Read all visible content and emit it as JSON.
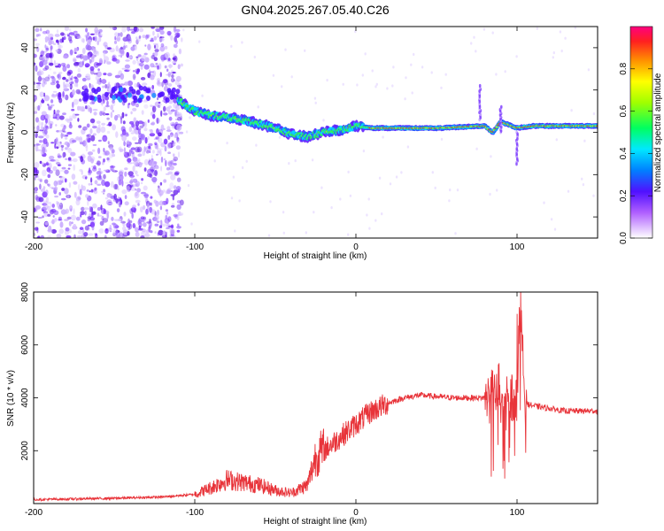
{
  "title": "GN04.2025.267.05.40.C26",
  "chart_data": [
    {
      "type": "heatmap",
      "xlabel": "Height of straight line (km)",
      "ylabel": "Frequency (Hz)",
      "xlim": [
        -200,
        150
      ],
      "ylim": [
        -50,
        50
      ],
      "xticks": [
        -200,
        -100,
        0,
        100
      ],
      "yticks": [
        -40,
        -20,
        0,
        20,
        40
      ],
      "colorbar": {
        "label": "Normalized spectral amplitude",
        "range": [
          0,
          1
        ],
        "ticks": [
          "0.0",
          "0.2",
          "0.4",
          "0.6",
          "0.8"
        ]
      },
      "ridge": {
        "x": [
          -110,
          -100,
          -90,
          -80,
          -70,
          -60,
          -50,
          -40,
          -30,
          -20,
          -10,
          0,
          10,
          50,
          80,
          85,
          90,
          100,
          110,
          150
        ],
        "freq": [
          15,
          10,
          8,
          7,
          6,
          4,
          2,
          -1,
          -2,
          0,
          1,
          3,
          2,
          2,
          3,
          0,
          5,
          2,
          3,
          3
        ]
      }
    },
    {
      "type": "line",
      "xlabel": "Height of straight line (km)",
      "ylabel": "SNR (10 * v/v)",
      "xlim": [
        -200,
        150
      ],
      "ylim": [
        0,
        8000
      ],
      "xticks": [
        -200,
        -100,
        0,
        100
      ],
      "yticks": [
        2000,
        4000,
        6000,
        8000
      ],
      "color": "#e8343a",
      "series": [
        {
          "x": [
            -200,
            -150,
            -120,
            -100,
            -90,
            -80,
            -70,
            -60,
            -50,
            -40,
            -30,
            -25,
            -20,
            -10,
            0,
            10,
            20,
            30,
            40,
            50,
            60,
            70,
            80,
            85,
            90,
            95,
            100,
            102,
            105,
            110,
            120,
            130,
            140,
            150
          ],
          "values": [
            150,
            200,
            250,
            350,
            600,
            900,
            800,
            700,
            500,
            400,
            700,
            1800,
            2000,
            2500,
            3000,
            3500,
            3800,
            4000,
            4100,
            4050,
            4000,
            4000,
            4000,
            4200,
            4000,
            3900,
            4000,
            8000,
            3800,
            3700,
            3600,
            3500,
            3500,
            3500
          ]
        }
      ]
    }
  ]
}
